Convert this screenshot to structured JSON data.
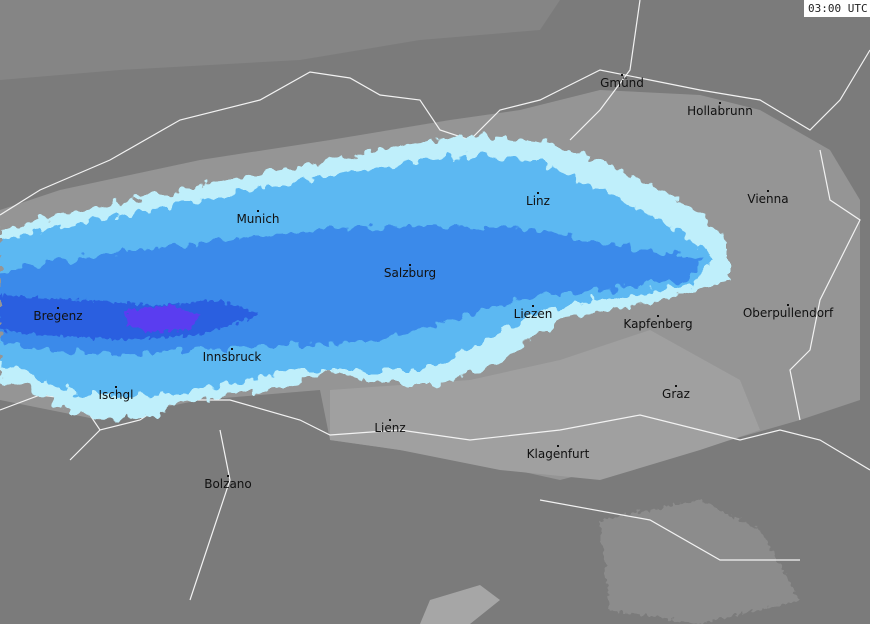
{
  "timestamp": "03:00 UTC",
  "cities": [
    {
      "name": "Gmünd"
    },
    {
      "name": "Hollabrunn"
    },
    {
      "name": "Linz"
    },
    {
      "name": "Vienna"
    },
    {
      "name": "Munich"
    },
    {
      "name": "Salzburg"
    },
    {
      "name": "Bregenz"
    },
    {
      "name": "Liezen"
    },
    {
      "name": "Kapfenberg"
    },
    {
      "name": "Oberpullendorf"
    },
    {
      "name": "Innsbruck"
    },
    {
      "name": "Ischgl"
    },
    {
      "name": "Graz"
    },
    {
      "name": "Lienz"
    },
    {
      "name": "Klagenfurt"
    },
    {
      "name": "Bolzano"
    }
  ]
}
